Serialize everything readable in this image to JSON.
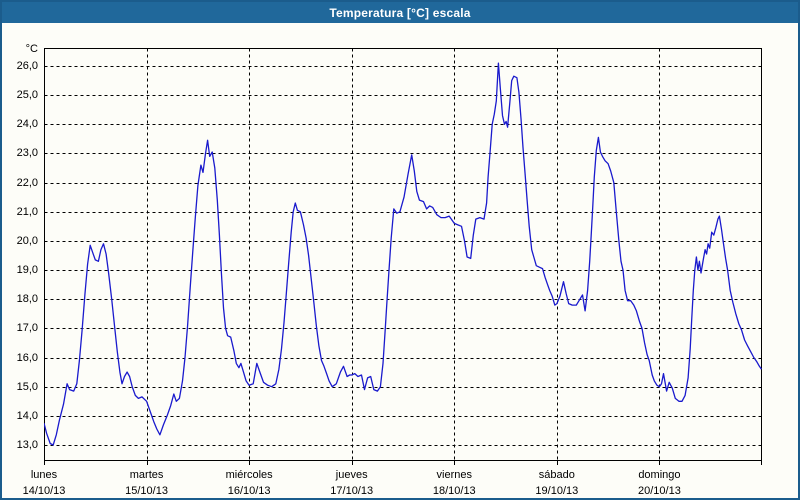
{
  "window": {
    "title": "Temperatura [°C] escala"
  },
  "colors": {
    "titlebar_bg": "#20689b",
    "window_border": "#1b5c8c",
    "content_bg": "#fdfdf8",
    "line_color": "#1a1acd",
    "grid_color": "#000000",
    "text_color": "#000000"
  },
  "chart_data": {
    "type": "line",
    "title": "Temperatura [°C] escala",
    "ylabel": "°C",
    "unit_label": "°C",
    "ylim": [
      13,
      26
    ],
    "y_tick_step": 1,
    "y_tick_labels": [
      "26,0",
      "25,0",
      "24,0",
      "23,0",
      "22,0",
      "21,0",
      "20,0",
      "19,0",
      "18,0",
      "17,0",
      "16,0",
      "15,0",
      "14,0",
      "13,0"
    ],
    "grid": "dashed-horizontal-and-vertical",
    "legend": "none",
    "x_days": [
      {
        "name": "lunes",
        "date": "14/10/13"
      },
      {
        "name": "martes",
        "date": "15/10/13"
      },
      {
        "name": "miércoles",
        "date": "16/10/13"
      },
      {
        "name": "jueves",
        "date": "17/10/13"
      },
      {
        "name": "viernes",
        "date": "18/10/13"
      },
      {
        "name": "sábado",
        "date": "19/10/13"
      },
      {
        "name": "domingo",
        "date": "20/10/13"
      }
    ],
    "series": [
      {
        "name": "Temperatura",
        "color": "#1a1acd",
        "x_unit": "days_since_2013-10-14",
        "points": [
          [
            0.0,
            13.75
          ],
          [
            0.025,
            13.4
          ],
          [
            0.06,
            13.05
          ],
          [
            0.09,
            13.0
          ],
          [
            0.12,
            13.35
          ],
          [
            0.15,
            13.85
          ],
          [
            0.19,
            14.4
          ],
          [
            0.225,
            15.1
          ],
          [
            0.25,
            14.9
          ],
          [
            0.29,
            14.85
          ],
          [
            0.32,
            15.1
          ],
          [
            0.345,
            15.9
          ],
          [
            0.37,
            16.9
          ],
          [
            0.4,
            18.2
          ],
          [
            0.425,
            19.2
          ],
          [
            0.45,
            19.85
          ],
          [
            0.475,
            19.6
          ],
          [
            0.5,
            19.35
          ],
          [
            0.53,
            19.3
          ],
          [
            0.555,
            19.7
          ],
          [
            0.58,
            19.9
          ],
          [
            0.605,
            19.55
          ],
          [
            0.63,
            18.9
          ],
          [
            0.66,
            18.0
          ],
          [
            0.69,
            17.0
          ],
          [
            0.715,
            16.2
          ],
          [
            0.74,
            15.5
          ],
          [
            0.76,
            15.1
          ],
          [
            0.785,
            15.35
          ],
          [
            0.81,
            15.5
          ],
          [
            0.835,
            15.35
          ],
          [
            0.86,
            15.0
          ],
          [
            0.89,
            14.7
          ],
          [
            0.92,
            14.6
          ],
          [
            0.955,
            14.65
          ],
          [
            1.0,
            14.5
          ],
          [
            1.035,
            14.15
          ],
          [
            1.07,
            13.8
          ],
          [
            1.1,
            13.55
          ],
          [
            1.13,
            13.35
          ],
          [
            1.165,
            13.7
          ],
          [
            1.2,
            14.0
          ],
          [
            1.235,
            14.35
          ],
          [
            1.265,
            14.75
          ],
          [
            1.29,
            14.5
          ],
          [
            1.32,
            14.6
          ],
          [
            1.35,
            15.2
          ],
          [
            1.375,
            16.0
          ],
          [
            1.4,
            17.1
          ],
          [
            1.425,
            18.4
          ],
          [
            1.45,
            19.6
          ],
          [
            1.475,
            20.8
          ],
          [
            1.5,
            21.9
          ],
          [
            1.53,
            22.6
          ],
          [
            1.55,
            22.35
          ],
          [
            1.575,
            23.0
          ],
          [
            1.595,
            23.45
          ],
          [
            1.615,
            22.9
          ],
          [
            1.64,
            23.05
          ],
          [
            1.665,
            22.5
          ],
          [
            1.69,
            21.4
          ],
          [
            1.71,
            20.2
          ],
          [
            1.73,
            18.9
          ],
          [
            1.75,
            17.7
          ],
          [
            1.77,
            17.0
          ],
          [
            1.79,
            16.75
          ],
          [
            1.82,
            16.7
          ],
          [
            1.85,
            16.25
          ],
          [
            1.875,
            15.8
          ],
          [
            1.9,
            15.65
          ],
          [
            1.92,
            15.8
          ],
          [
            1.945,
            15.5
          ],
          [
            1.97,
            15.2
          ],
          [
            2.0,
            15.05
          ],
          [
            2.04,
            15.1
          ],
          [
            2.075,
            15.8
          ],
          [
            2.11,
            15.45
          ],
          [
            2.14,
            15.15
          ],
          [
            2.18,
            15.05
          ],
          [
            2.22,
            15.0
          ],
          [
            2.26,
            15.1
          ],
          [
            2.29,
            15.6
          ],
          [
            2.315,
            16.3
          ],
          [
            2.34,
            17.2
          ],
          [
            2.36,
            18.1
          ],
          [
            2.385,
            19.2
          ],
          [
            2.41,
            20.3
          ],
          [
            2.43,
            21.0
          ],
          [
            2.45,
            21.3
          ],
          [
            2.47,
            21.05
          ],
          [
            2.5,
            21.0
          ],
          [
            2.53,
            20.55
          ],
          [
            2.555,
            20.1
          ],
          [
            2.58,
            19.5
          ],
          [
            2.605,
            18.7
          ],
          [
            2.63,
            17.9
          ],
          [
            2.655,
            17.1
          ],
          [
            2.68,
            16.4
          ],
          [
            2.705,
            15.9
          ],
          [
            2.73,
            15.7
          ],
          [
            2.755,
            15.45
          ],
          [
            2.78,
            15.2
          ],
          [
            2.81,
            15.0
          ],
          [
            2.85,
            15.1
          ],
          [
            2.89,
            15.5
          ],
          [
            2.92,
            15.7
          ],
          [
            2.955,
            15.35
          ],
          [
            2.98,
            15.4
          ],
          [
            3.0,
            15.4
          ],
          [
            3.03,
            15.45
          ],
          [
            3.06,
            15.35
          ],
          [
            3.095,
            15.4
          ],
          [
            3.125,
            14.9
          ],
          [
            3.155,
            15.3
          ],
          [
            3.185,
            15.35
          ],
          [
            3.215,
            14.9
          ],
          [
            3.25,
            14.85
          ],
          [
            3.28,
            15.0
          ],
          [
            3.305,
            15.8
          ],
          [
            3.325,
            16.9
          ],
          [
            3.345,
            18.0
          ],
          [
            3.365,
            19.1
          ],
          [
            3.385,
            20.1
          ],
          [
            3.41,
            21.1
          ],
          [
            3.44,
            20.95
          ],
          [
            3.47,
            21.0
          ],
          [
            3.51,
            21.5
          ],
          [
            3.55,
            22.3
          ],
          [
            3.585,
            22.95
          ],
          [
            3.61,
            22.4
          ],
          [
            3.635,
            21.7
          ],
          [
            3.66,
            21.4
          ],
          [
            3.7,
            21.35
          ],
          [
            3.73,
            21.1
          ],
          [
            3.76,
            21.2
          ],
          [
            3.79,
            21.15
          ],
          [
            3.83,
            20.9
          ],
          [
            3.87,
            20.8
          ],
          [
            3.91,
            20.8
          ],
          [
            3.95,
            20.85
          ],
          [
            4.0,
            20.6
          ],
          [
            4.035,
            20.55
          ],
          [
            4.07,
            20.5
          ],
          [
            4.1,
            20.0
          ],
          [
            4.125,
            19.45
          ],
          [
            4.16,
            19.4
          ],
          [
            4.185,
            20.2
          ],
          [
            4.21,
            20.75
          ],
          [
            4.25,
            20.8
          ],
          [
            4.29,
            20.75
          ],
          [
            4.315,
            21.3
          ],
          [
            4.33,
            22.2
          ],
          [
            4.35,
            23.1
          ],
          [
            4.37,
            24.0
          ],
          [
            4.39,
            24.35
          ],
          [
            4.41,
            24.8
          ],
          [
            4.43,
            26.1
          ],
          [
            4.45,
            25.2
          ],
          [
            4.47,
            24.3
          ],
          [
            4.49,
            24.0
          ],
          [
            4.505,
            24.1
          ],
          [
            4.52,
            23.9
          ],
          [
            4.54,
            24.7
          ],
          [
            4.56,
            25.5
          ],
          [
            4.58,
            25.65
          ],
          [
            4.61,
            25.6
          ],
          [
            4.63,
            25.1
          ],
          [
            4.65,
            24.2
          ],
          [
            4.67,
            23.2
          ],
          [
            4.69,
            22.3
          ],
          [
            4.71,
            21.4
          ],
          [
            4.73,
            20.5
          ],
          [
            4.755,
            19.7
          ],
          [
            4.775,
            19.45
          ],
          [
            4.8,
            19.15
          ],
          [
            4.83,
            19.1
          ],
          [
            4.86,
            19.05
          ],
          [
            4.885,
            18.75
          ],
          [
            4.91,
            18.5
          ],
          [
            4.93,
            18.3
          ],
          [
            4.955,
            18.1
          ],
          [
            4.98,
            17.8
          ],
          [
            5.0,
            17.85
          ],
          [
            5.03,
            18.1
          ],
          [
            5.065,
            18.6
          ],
          [
            5.09,
            18.2
          ],
          [
            5.115,
            17.85
          ],
          [
            5.15,
            17.8
          ],
          [
            5.19,
            17.8
          ],
          [
            5.225,
            18.0
          ],
          [
            5.25,
            18.15
          ],
          [
            5.275,
            17.6
          ],
          [
            5.3,
            18.3
          ],
          [
            5.32,
            19.3
          ],
          [
            5.335,
            20.2
          ],
          [
            5.35,
            21.2
          ],
          [
            5.365,
            22.2
          ],
          [
            5.385,
            23.1
          ],
          [
            5.405,
            23.55
          ],
          [
            5.425,
            23.05
          ],
          [
            5.445,
            22.9
          ],
          [
            5.47,
            22.75
          ],
          [
            5.5,
            22.65
          ],
          [
            5.525,
            22.4
          ],
          [
            5.555,
            22.0
          ],
          [
            5.58,
            21.0
          ],
          [
            5.605,
            20.0
          ],
          [
            5.625,
            19.3
          ],
          [
            5.645,
            19.0
          ],
          [
            5.665,
            18.3
          ],
          [
            5.69,
            17.95
          ],
          [
            5.72,
            17.95
          ],
          [
            5.75,
            17.8
          ],
          [
            5.775,
            17.6
          ],
          [
            5.805,
            17.25
          ],
          [
            5.83,
            17.0
          ],
          [
            5.855,
            16.5
          ],
          [
            5.88,
            16.1
          ],
          [
            5.9,
            15.9
          ],
          [
            5.93,
            15.4
          ],
          [
            5.95,
            15.2
          ],
          [
            5.975,
            15.05
          ],
          [
            6.0,
            15.0
          ],
          [
            6.02,
            15.1
          ],
          [
            6.04,
            15.45
          ],
          [
            6.07,
            14.85
          ],
          [
            6.095,
            15.15
          ],
          [
            6.125,
            14.95
          ],
          [
            6.155,
            14.6
          ],
          [
            6.19,
            14.5
          ],
          [
            6.22,
            14.5
          ],
          [
            6.25,
            14.7
          ],
          [
            6.28,
            15.3
          ],
          [
            6.3,
            16.3
          ],
          [
            6.315,
            17.3
          ],
          [
            6.33,
            18.3
          ],
          [
            6.345,
            19.0
          ],
          [
            6.36,
            19.45
          ],
          [
            6.375,
            19.0
          ],
          [
            6.39,
            19.3
          ],
          [
            6.405,
            18.9
          ],
          [
            6.43,
            19.4
          ],
          [
            6.445,
            19.7
          ],
          [
            6.46,
            19.55
          ],
          [
            6.475,
            19.9
          ],
          [
            6.49,
            19.75
          ],
          [
            6.51,
            20.3
          ],
          [
            6.53,
            20.2
          ],
          [
            6.55,
            20.45
          ],
          [
            6.57,
            20.75
          ],
          [
            6.585,
            20.85
          ],
          [
            6.605,
            20.4
          ],
          [
            6.625,
            19.9
          ],
          [
            6.645,
            19.4
          ],
          [
            6.665,
            19.0
          ],
          [
            6.69,
            18.3
          ],
          [
            6.715,
            17.9
          ],
          [
            6.745,
            17.5
          ],
          [
            6.775,
            17.15
          ],
          [
            6.8,
            16.95
          ],
          [
            6.83,
            16.6
          ],
          [
            6.86,
            16.4
          ],
          [
            6.89,
            16.2
          ],
          [
            6.92,
            16.0
          ],
          [
            6.95,
            15.85
          ],
          [
            6.975,
            15.7
          ],
          [
            6.995,
            15.6
          ]
        ]
      }
    ]
  }
}
